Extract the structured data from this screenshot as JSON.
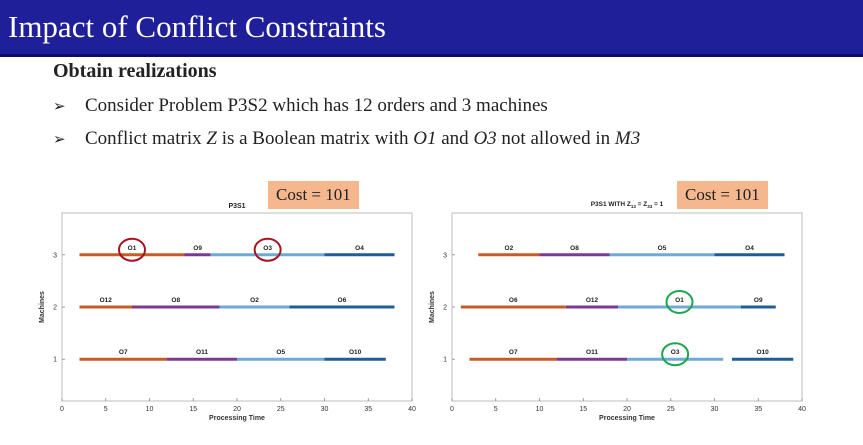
{
  "slide": {
    "title": "Impact of  Conflict Constraints",
    "subtitle": "Obtain realizations",
    "bullets": [
      {
        "arrow": "➢",
        "parts": [
          {
            "text": "Consider Problem P3S2 which has 12 orders and 3 machines",
            "italic": false
          }
        ]
      },
      {
        "arrow": "➢",
        "parts": [
          {
            "text": "Conflict matrix ",
            "italic": false
          },
          {
            "text": "Z",
            "italic": true
          },
          {
            "text": " is a Boolean matrix with ",
            "italic": false
          },
          {
            "text": "O1",
            "italic": true
          },
          {
            "text": " and ",
            "italic": false
          },
          {
            "text": "O3",
            "italic": true
          },
          {
            "text": " not allowed in ",
            "italic": false
          },
          {
            "text": "M3",
            "italic": true
          }
        ]
      }
    ]
  },
  "chart_data": [
    {
      "type": "gantt",
      "title": "P3S1",
      "cost_label": "Cost = 101",
      "xlabel": "Processing Time",
      "ylabel": "Machines",
      "xlim": [
        0,
        40
      ],
      "ylim": [
        0.2,
        3.8
      ],
      "xticks": [
        0,
        5,
        10,
        15,
        20,
        25,
        30,
        35,
        40
      ],
      "yticks": [
        1,
        2,
        3
      ],
      "highlight_color": "#a8121f",
      "rows": [
        {
          "machine": 3,
          "tasks": [
            {
              "label": "O1",
              "start": 2,
              "end": 14,
              "color": "#c85c28",
              "highlight": true
            },
            {
              "label": "O9",
              "start": 14,
              "end": 17,
              "color": "#7a3a92"
            },
            {
              "label": "O3",
              "start": 17,
              "end": 30,
              "color": "#6fa9d6",
              "highlight": true
            },
            {
              "label": "O4",
              "start": 30,
              "end": 38,
              "color": "#1e5d96"
            }
          ]
        },
        {
          "machine": 2,
          "tasks": [
            {
              "label": "O12",
              "start": 2,
              "end": 8,
              "color": "#c85c28"
            },
            {
              "label": "O8",
              "start": 8,
              "end": 18,
              "color": "#7a3a92"
            },
            {
              "label": "O2",
              "start": 18,
              "end": 26,
              "color": "#6fa9d6"
            },
            {
              "label": "O6",
              "start": 26,
              "end": 38,
              "color": "#1e5d96"
            }
          ]
        },
        {
          "machine": 1,
          "tasks": [
            {
              "label": "O7",
              "start": 2,
              "end": 12,
              "color": "#c85c28"
            },
            {
              "label": "O11",
              "start": 12,
              "end": 20,
              "color": "#7a3a92"
            },
            {
              "label": "O5",
              "start": 20,
              "end": 30,
              "color": "#6fa9d6"
            },
            {
              "label": "O10",
              "start": 30,
              "end": 37,
              "color": "#1e5d96"
            }
          ]
        }
      ]
    },
    {
      "type": "gantt",
      "title": "P3S1 WITH Z",
      "title_parts": [
        {
          "text": "P3S1 WITH Z"
        },
        {
          "text": "13",
          "sub": true
        },
        {
          "text": " = Z"
        },
        {
          "text": "33",
          "sub": true
        },
        {
          "text": " = 1"
        }
      ],
      "cost_label": "Cost = 101",
      "xlabel": "Processing Time",
      "ylabel": "Machines",
      "xlim": [
        0,
        40
      ],
      "ylim": [
        0.2,
        3.8
      ],
      "xticks": [
        0,
        5,
        10,
        15,
        20,
        25,
        30,
        35,
        40
      ],
      "yticks": [
        1,
        2,
        3
      ],
      "highlight_color": "#1aa64a",
      "rows": [
        {
          "machine": 3,
          "tasks": [
            {
              "label": "O2",
              "start": 3,
              "end": 10,
              "color": "#c85c28"
            },
            {
              "label": "O8",
              "start": 10,
              "end": 18,
              "color": "#7a3a92"
            },
            {
              "label": "O5",
              "start": 18,
              "end": 30,
              "color": "#6fa9d6"
            },
            {
              "label": "O4",
              "start": 30,
              "end": 38,
              "color": "#1e5d96"
            }
          ]
        },
        {
          "machine": 2,
          "tasks": [
            {
              "label": "O6",
              "start": 1,
              "end": 13,
              "color": "#c85c28"
            },
            {
              "label": "O12",
              "start": 13,
              "end": 19,
              "color": "#7a3a92"
            },
            {
              "label": "O1",
              "start": 19,
              "end": 33,
              "color": "#6fa9d6",
              "highlight": true
            },
            {
              "label": "O9",
              "start": 33,
              "end": 37,
              "color": "#1e5d96"
            }
          ]
        },
        {
          "machine": 1,
          "tasks": [
            {
              "label": "O7",
              "start": 2,
              "end": 12,
              "color": "#c85c28"
            },
            {
              "label": "O11",
              "start": 12,
              "end": 20,
              "color": "#7a3a92"
            },
            {
              "label": "O3",
              "start": 20,
              "end": 31,
              "color": "#6fa9d6",
              "highlight": true
            },
            {
              "label": "O10",
              "start": 32,
              "end": 39,
              "color": "#1e5d96"
            }
          ]
        }
      ]
    }
  ]
}
